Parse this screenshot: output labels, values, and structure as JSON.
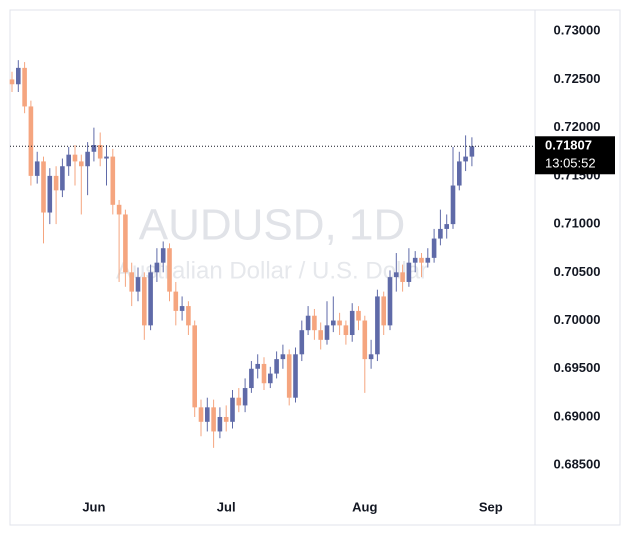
{
  "chart_data": {
    "type": "candlestick",
    "title": "AUDUSD, 1D",
    "subtitle": "Australian Dollar / U.S. Dollar",
    "categories": [
      null,
      null,
      null,
      null,
      null,
      null,
      null,
      null,
      null,
      null,
      null,
      null,
      null,
      "Jun",
      null,
      null,
      null,
      null,
      null,
      null,
      null,
      null,
      null,
      null,
      null,
      null,
      null,
      null,
      null,
      null,
      null,
      null,
      null,
      null,
      "Jul",
      null,
      null,
      null,
      null,
      null,
      null,
      null,
      null,
      null,
      null,
      null,
      null,
      null,
      null,
      null,
      null,
      null,
      null,
      null,
      null,
      null,
      "Aug",
      null,
      null,
      null,
      null,
      null,
      null,
      null,
      null,
      null,
      null,
      null,
      null,
      null,
      null,
      null,
      null,
      null,
      null,
      null,
      "Sep"
    ],
    "open": [
      0.725,
      0.7245,
      0.7262,
      0.7222,
      0.715,
      0.7165,
      0.7112,
      0.715,
      0.7135,
      0.716,
      0.7172,
      0.7165,
      0.716,
      0.7175,
      0.7182,
      0.7168,
      0.717,
      0.712,
      0.711,
      0.705,
      0.703,
      0.7045,
      0.6995,
      0.705,
      0.706,
      0.7075,
      0.703,
      0.701,
      0.7015,
      0.6995,
      0.691,
      0.6895,
      0.691,
      0.6885,
      0.69,
      0.6895,
      0.692,
      0.6912,
      0.693,
      0.695,
      0.6955,
      0.6935,
      0.6945,
      0.696,
      0.6965,
      0.692,
      0.6965,
      0.699,
      0.7005,
      0.699,
      0.698,
      0.6995,
      0.7,
      0.6995,
      0.6985,
      0.701,
      0.7,
      0.696,
      0.6965,
      0.7025,
      0.6995,
      0.7045,
      0.705,
      0.704,
      0.706,
      0.7065,
      0.706,
      0.7065,
      0.7085,
      0.7095,
      0.71,
      0.714,
      0.7165,
      0.717,
      null,
      null,
      null
    ],
    "high": [
      0.7258,
      0.727,
      0.7268,
      0.7228,
      0.7175,
      0.717,
      0.7158,
      0.716,
      0.7168,
      0.718,
      0.7182,
      0.7172,
      0.7185,
      0.72,
      0.7195,
      0.7182,
      0.7178,
      0.7125,
      0.7115,
      0.706,
      0.7055,
      0.705,
      0.7058,
      0.7075,
      0.7082,
      0.708,
      0.704,
      0.7025,
      0.702,
      0.7,
      0.6918,
      0.692,
      0.6918,
      0.691,
      0.6912,
      0.6928,
      0.693,
      0.694,
      0.6958,
      0.6965,
      0.6962,
      0.6952,
      0.6968,
      0.6975,
      0.697,
      0.6972,
      0.7,
      0.7015,
      0.7012,
      0.6998,
      0.702,
      0.7025,
      0.7008,
      0.7,
      0.7018,
      0.7015,
      0.7005,
      0.698,
      0.7032,
      0.703,
      0.7052,
      0.707,
      0.7058,
      0.7075,
      0.7072,
      0.707,
      0.7075,
      0.7095,
      0.7115,
      0.711,
      0.718,
      0.7175,
      0.7192,
      0.719,
      null,
      null,
      null
    ],
    "low": [
      0.7237,
      0.7237,
      0.7215,
      0.714,
      0.7142,
      0.708,
      0.71,
      0.71,
      0.7128,
      0.715,
      0.714,
      0.711,
      0.713,
      0.7165,
      0.716,
      0.714,
      0.711,
      0.704,
      0.7035,
      0.7015,
      0.702,
      0.698,
      0.699,
      0.704,
      0.705,
      0.702,
      0.6995,
      0.7,
      0.6985,
      0.69,
      0.688,
      0.6885,
      0.6868,
      0.6878,
      0.6885,
      0.6888,
      0.6905,
      0.6905,
      0.6925,
      0.694,
      0.6928,
      0.693,
      0.694,
      0.695,
      0.6912,
      0.6915,
      0.6958,
      0.6985,
      0.698,
      0.697,
      0.6975,
      0.6988,
      0.6985,
      0.6975,
      0.6978,
      0.699,
      0.6925,
      0.695,
      0.6958,
      0.6985,
      0.699,
      0.703,
      0.703,
      0.7035,
      0.705,
      0.7045,
      0.7055,
      0.706,
      0.7078,
      0.7085,
      0.7095,
      0.7135,
      0.7155,
      0.716,
      null,
      null,
      null
    ],
    "close": [
      0.7245,
      0.7262,
      0.7222,
      0.715,
      0.7165,
      0.7112,
      0.715,
      0.7135,
      0.716,
      0.7172,
      0.7165,
      0.716,
      0.7175,
      0.7182,
      0.7168,
      0.717,
      0.712,
      0.711,
      0.705,
      0.703,
      0.7045,
      0.6995,
      0.705,
      0.706,
      0.7075,
      0.703,
      0.701,
      0.7015,
      0.6995,
      0.691,
      0.6895,
      0.691,
      0.6885,
      0.69,
      0.6895,
      0.692,
      0.6912,
      0.693,
      0.695,
      0.6955,
      0.6935,
      0.6945,
      0.696,
      0.6965,
      0.692,
      0.6965,
      0.699,
      0.7005,
      0.699,
      0.698,
      0.6995,
      0.7,
      0.6995,
      0.6985,
      0.701,
      0.7,
      0.696,
      0.6965,
      0.7025,
      0.6995,
      0.7045,
      0.705,
      0.704,
      0.706,
      0.7065,
      0.706,
      0.7065,
      0.7085,
      0.7095,
      0.71,
      0.714,
      0.7165,
      0.717,
      0.71807,
      null,
      null,
      null
    ],
    "up_color": "#5f6aa8",
    "down_color": "#f5a57f",
    "last_price": 0.71807,
    "countdown": "13:05:52",
    "ylim": [
      0.6788,
      0.7322
    ],
    "yticks": [
      {
        "value": 0.685,
        "label": "0.68500"
      },
      {
        "value": 0.69,
        "label": "0.69000"
      },
      {
        "value": 0.695,
        "label": "0.69500"
      },
      {
        "value": 0.7,
        "label": "0.70000"
      },
      {
        "value": 0.705,
        "label": "0.70500"
      },
      {
        "value": 0.71,
        "label": "0.71000"
      },
      {
        "value": 0.715,
        "label": "0.71500"
      },
      {
        "value": 0.72,
        "label": "0.72000"
      },
      {
        "value": 0.725,
        "label": "0.72500"
      },
      {
        "value": 0.73,
        "label": "0.73000"
      }
    ]
  }
}
